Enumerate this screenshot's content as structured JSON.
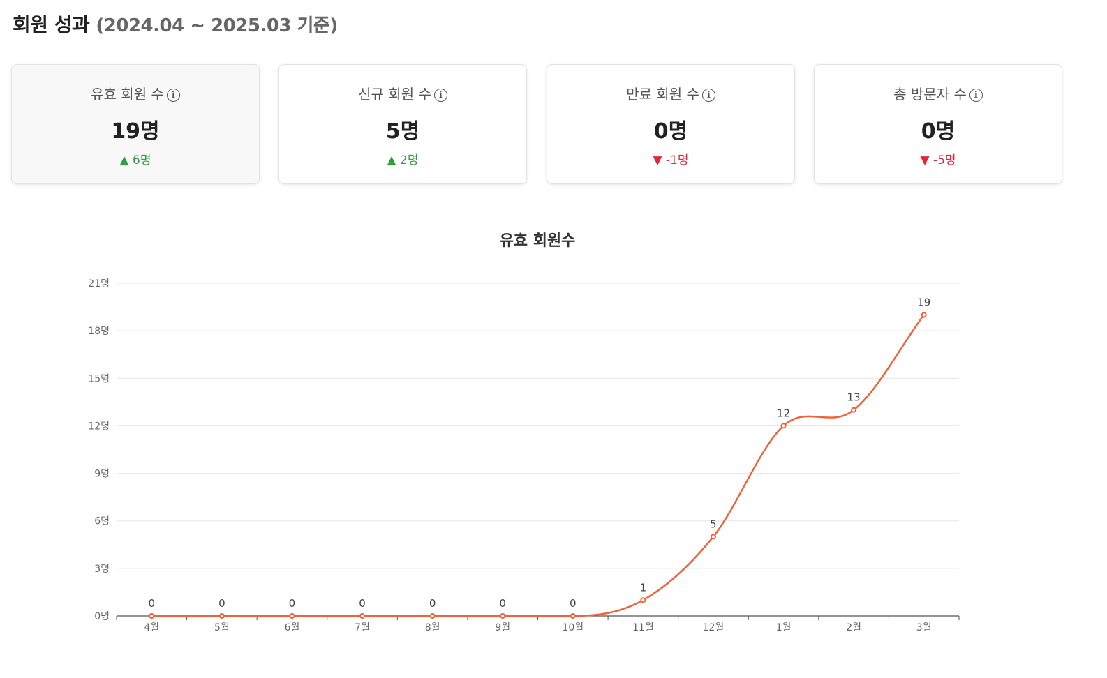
{
  "header": {
    "title": "회원 성과",
    "period": "(2024.04 ~ 2025.03 기준)"
  },
  "cards": [
    {
      "label": "유효 회원 수",
      "value": "19명",
      "delta": "▲ 6명",
      "trend": "up",
      "active": true
    },
    {
      "label": "신규 회원 수",
      "value": "5명",
      "delta": "▲ 2명",
      "trend": "up",
      "active": false
    },
    {
      "label": "만료 회원 수",
      "value": "0명",
      "delta": "▼ -1명",
      "trend": "down",
      "active": false
    },
    {
      "label": "총 방문자 수",
      "value": "0명",
      "delta": "▼ -5명",
      "trend": "down",
      "active": false
    }
  ],
  "info_icon": "i",
  "colors": {
    "line": "#f0623a",
    "up": "#2e9e3f",
    "down": "#e0283c",
    "grid": "#e6e6e6"
  },
  "chart_data": {
    "type": "line",
    "title": "유효 회원수",
    "categories": [
      "4월",
      "5월",
      "6월",
      "7월",
      "8월",
      "9월",
      "10월",
      "11월",
      "12월",
      "1월",
      "2월",
      "3월"
    ],
    "values": [
      0,
      0,
      0,
      0,
      0,
      0,
      0,
      1,
      5,
      12,
      13,
      19
    ],
    "yticks": [
      "0명",
      "3명",
      "6명",
      "9명",
      "12명",
      "15명",
      "18명",
      "21명"
    ],
    "ylim": [
      0,
      21
    ],
    "grid": true,
    "smooth": true
  }
}
